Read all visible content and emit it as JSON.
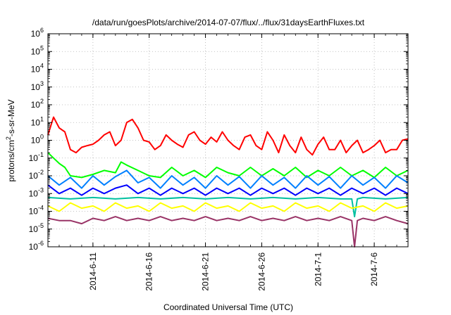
{
  "chart_data": {
    "type": "line",
    "title": "/data/run/goesPlots/archive/2014-07-07/flux/../flux/31daysEarthFluxes.txt",
    "xlabel": "Coordinated Universal Time (UTC)",
    "ylabel_main": "protons/cm",
    "ylabel_sup": "2",
    "ylabel_tail": "-s-sr-MeV",
    "y_scale": "log",
    "ylim_exp": [
      -6,
      6
    ],
    "y_ticks": [
      {
        "base": "10",
        "exp": "-6"
      },
      {
        "base": "10",
        "exp": "-5"
      },
      {
        "base": "10",
        "exp": "-4"
      },
      {
        "base": "10",
        "exp": "-3"
      },
      {
        "base": "10",
        "exp": "-2"
      },
      {
        "base": "10",
        "exp": "-1"
      },
      {
        "base": "10",
        "exp": "0"
      },
      {
        "base": "10",
        "exp": "1"
      },
      {
        "base": "10",
        "exp": "2"
      },
      {
        "base": "10",
        "exp": "3"
      },
      {
        "base": "10",
        "exp": "4"
      },
      {
        "base": "10",
        "exp": "5"
      },
      {
        "base": "10",
        "exp": "6"
      }
    ],
    "x_start": "2014-06-07",
    "x_end": "2014-07-09",
    "x_ticks": [
      "2014-6-11",
      "2014-6-16",
      "2014-6-21",
      "2014-6-26",
      "2014-7-1",
      "2014-7-6"
    ],
    "grid": true,
    "series": [
      {
        "color": "#ff0000",
        "points": [
          [
            "2014-06-07",
            2.0
          ],
          [
            "2014-06-07T12:00",
            20.0
          ],
          [
            "2014-06-08",
            5.0
          ],
          [
            "2014-06-08T12:00",
            3.0
          ],
          [
            "2014-06-09",
            0.3
          ],
          [
            "2014-06-09T12:00",
            0.2
          ],
          [
            "2014-06-10",
            0.4
          ],
          [
            "2014-06-10T12:00",
            0.5
          ],
          [
            "2014-06-11",
            0.6
          ],
          [
            "2014-06-11T12:00",
            1.0
          ],
          [
            "2014-06-12",
            2.0
          ],
          [
            "2014-06-12T12:00",
            3.0
          ],
          [
            "2014-06-13",
            0.5
          ],
          [
            "2014-06-13T12:00",
            1.0
          ],
          [
            "2014-06-14",
            10.0
          ],
          [
            "2014-06-14T12:00",
            15.0
          ],
          [
            "2014-06-15",
            5.0
          ],
          [
            "2014-06-15T12:00",
            1.0
          ],
          [
            "2014-06-16",
            0.8
          ],
          [
            "2014-06-16T12:00",
            0.3
          ],
          [
            "2014-06-17",
            0.5
          ],
          [
            "2014-06-17T12:00",
            2.0
          ],
          [
            "2014-06-18",
            1.0
          ],
          [
            "2014-06-18T12:00",
            0.6
          ],
          [
            "2014-06-19",
            0.4
          ],
          [
            "2014-06-19T12:00",
            2.0
          ],
          [
            "2014-06-20",
            3.0
          ],
          [
            "2014-06-20T12:00",
            1.0
          ],
          [
            "2014-06-21",
            0.6
          ],
          [
            "2014-06-21T12:00",
            1.5
          ],
          [
            "2014-06-22",
            0.8
          ],
          [
            "2014-06-22T12:00",
            3.0
          ],
          [
            "2014-06-23",
            1.0
          ],
          [
            "2014-06-23T12:00",
            0.5
          ],
          [
            "2014-06-24",
            0.3
          ],
          [
            "2014-06-24T12:00",
            1.5
          ],
          [
            "2014-06-25",
            2.0
          ],
          [
            "2014-06-25T12:00",
            0.5
          ],
          [
            "2014-06-26",
            0.3
          ],
          [
            "2014-06-26T12:00",
            3.0
          ],
          [
            "2014-06-27",
            1.0
          ],
          [
            "2014-06-27T12:00",
            0.2
          ],
          [
            "2014-06-28",
            2.0
          ],
          [
            "2014-06-28T12:00",
            0.5
          ],
          [
            "2014-06-29",
            0.2
          ],
          [
            "2014-06-29T12:00",
            1.5
          ],
          [
            "2014-06-30",
            0.3
          ],
          [
            "2014-06-30T12:00",
            0.15
          ],
          [
            "2014-07-01",
            0.6
          ],
          [
            "2014-07-01T12:00",
            1.5
          ],
          [
            "2014-07-02",
            0.3
          ],
          [
            "2014-07-02T12:00",
            0.3
          ],
          [
            "2014-07-03",
            1.0
          ],
          [
            "2014-07-03T12:00",
            0.2
          ],
          [
            "2014-07-04",
            0.5
          ],
          [
            "2014-07-04T12:00",
            1.0
          ],
          [
            "2014-07-05",
            0.2
          ],
          [
            "2014-07-05T12:00",
            0.3
          ],
          [
            "2014-07-06",
            0.5
          ],
          [
            "2014-07-06T12:00",
            1.0
          ],
          [
            "2014-07-07",
            0.2
          ],
          [
            "2014-07-07T12:00",
            0.3
          ],
          [
            "2014-07-08",
            0.3
          ],
          [
            "2014-07-08T12:00",
            1.0
          ],
          [
            "2014-07-09",
            1.2
          ]
        ]
      },
      {
        "color": "#00ff00",
        "points": [
          [
            "2014-06-07",
            0.2
          ],
          [
            "2014-06-07T12:00",
            0.1
          ],
          [
            "2014-06-08",
            0.05
          ],
          [
            "2014-06-08T12:00",
            0.03
          ],
          [
            "2014-06-09",
            0.01
          ],
          [
            "2014-06-10",
            0.008
          ],
          [
            "2014-06-11",
            0.012
          ],
          [
            "2014-06-12",
            0.02
          ],
          [
            "2014-06-13",
            0.015
          ],
          [
            "2014-06-13T12:00",
            0.06
          ],
          [
            "2014-06-14",
            0.04
          ],
          [
            "2014-06-15",
            0.02
          ],
          [
            "2014-06-16",
            0.01
          ],
          [
            "2014-06-17",
            0.008
          ],
          [
            "2014-06-18",
            0.03
          ],
          [
            "2014-06-19",
            0.01
          ],
          [
            "2014-06-20",
            0.02
          ],
          [
            "2014-06-21",
            0.008
          ],
          [
            "2014-06-22",
            0.03
          ],
          [
            "2014-06-23",
            0.015
          ],
          [
            "2014-06-24",
            0.01
          ],
          [
            "2014-06-25",
            0.03
          ],
          [
            "2014-06-26",
            0.01
          ],
          [
            "2014-06-27",
            0.025
          ],
          [
            "2014-06-28",
            0.01
          ],
          [
            "2014-06-29",
            0.03
          ],
          [
            "2014-06-30",
            0.008
          ],
          [
            "2014-07-01",
            0.02
          ],
          [
            "2014-07-02",
            0.01
          ],
          [
            "2014-07-03",
            0.03
          ],
          [
            "2014-07-04",
            0.01
          ],
          [
            "2014-07-05",
            0.02
          ],
          [
            "2014-07-06",
            0.008
          ],
          [
            "2014-07-07",
            0.03
          ],
          [
            "2014-07-08",
            0.01
          ],
          [
            "2014-07-09",
            0.02
          ]
        ]
      },
      {
        "color": "#0080ff",
        "points": [
          [
            "2014-06-07",
            0.01
          ],
          [
            "2014-06-08",
            0.003
          ],
          [
            "2014-06-09",
            0.008
          ],
          [
            "2014-06-10",
            0.002
          ],
          [
            "2014-06-11",
            0.01
          ],
          [
            "2014-06-12",
            0.003
          ],
          [
            "2014-06-13",
            0.009
          ],
          [
            "2014-06-14",
            0.02
          ],
          [
            "2014-06-15",
            0.004
          ],
          [
            "2014-06-16",
            0.008
          ],
          [
            "2014-06-17",
            0.002
          ],
          [
            "2014-06-18",
            0.01
          ],
          [
            "2014-06-19",
            0.003
          ],
          [
            "2014-06-20",
            0.008
          ],
          [
            "2014-06-21",
            0.002
          ],
          [
            "2014-06-22",
            0.01
          ],
          [
            "2014-06-23",
            0.003
          ],
          [
            "2014-06-24",
            0.009
          ],
          [
            "2014-06-25",
            0.002
          ],
          [
            "2014-06-26",
            0.01
          ],
          [
            "2014-06-27",
            0.003
          ],
          [
            "2014-06-28",
            0.008
          ],
          [
            "2014-06-29",
            0.002
          ],
          [
            "2014-06-30",
            0.01
          ],
          [
            "2014-07-01",
            0.003
          ],
          [
            "2014-07-02",
            0.009
          ],
          [
            "2014-07-03",
            0.002
          ],
          [
            "2014-07-04",
            0.01
          ],
          [
            "2014-07-05",
            0.003
          ],
          [
            "2014-07-06",
            0.008
          ],
          [
            "2014-07-07",
            0.002
          ],
          [
            "2014-07-08",
            0.01
          ],
          [
            "2014-07-09",
            0.004
          ]
        ]
      },
      {
        "color": "#0000ff",
        "points": [
          [
            "2014-06-07",
            0.003
          ],
          [
            "2014-06-08",
            0.001
          ],
          [
            "2014-06-09",
            0.002
          ],
          [
            "2014-06-10",
            0.0008
          ],
          [
            "2014-06-11",
            0.002
          ],
          [
            "2014-06-12",
            0.001
          ],
          [
            "2014-06-13",
            0.002
          ],
          [
            "2014-06-14",
            0.003
          ],
          [
            "2014-06-15",
            0.001
          ],
          [
            "2014-06-16",
            0.002
          ],
          [
            "2014-06-17",
            0.0008
          ],
          [
            "2014-06-18",
            0.002
          ],
          [
            "2014-06-19",
            0.001
          ],
          [
            "2014-06-20",
            0.002
          ],
          [
            "2014-06-21",
            0.0008
          ],
          [
            "2014-06-22",
            0.002
          ],
          [
            "2014-06-23",
            0.001
          ],
          [
            "2014-06-24",
            0.002
          ],
          [
            "2014-06-25",
            0.0008
          ],
          [
            "2014-06-26",
            0.002
          ],
          [
            "2014-06-27",
            0.001
          ],
          [
            "2014-06-28",
            0.002
          ],
          [
            "2014-06-29",
            0.0008
          ],
          [
            "2014-06-30",
            0.002
          ],
          [
            "2014-07-01",
            0.001
          ],
          [
            "2014-07-02",
            0.002
          ],
          [
            "2014-07-03",
            0.0008
          ],
          [
            "2014-07-04",
            0.002
          ],
          [
            "2014-07-05",
            0.001
          ],
          [
            "2014-07-06",
            0.002
          ],
          [
            "2014-07-07",
            0.0008
          ],
          [
            "2014-07-08",
            0.002
          ],
          [
            "2014-07-09",
            0.001
          ]
        ]
      },
      {
        "color": "#00c0a0",
        "points": [
          [
            "2014-06-07",
            0.0006
          ],
          [
            "2014-06-09",
            0.0005
          ],
          [
            "2014-06-11",
            0.0006
          ],
          [
            "2014-06-13",
            0.0005
          ],
          [
            "2014-06-15",
            0.0006
          ],
          [
            "2014-06-17",
            0.0005
          ],
          [
            "2014-06-19",
            0.0006
          ],
          [
            "2014-06-21",
            0.0005
          ],
          [
            "2014-06-23",
            0.0006
          ],
          [
            "2014-06-25",
            0.0005
          ],
          [
            "2014-06-27",
            0.0006
          ],
          [
            "2014-06-29",
            0.0005
          ],
          [
            "2014-07-01",
            0.0006
          ],
          [
            "2014-07-03",
            0.0005
          ],
          [
            "2014-07-04",
            0.0005
          ],
          [
            "2014-07-04T06:00",
            5e-05
          ],
          [
            "2014-07-04T12:00",
            0.0005
          ],
          [
            "2014-07-05",
            0.0006
          ],
          [
            "2014-07-07",
            0.0005
          ],
          [
            "2014-07-09",
            0.0006
          ]
        ]
      },
      {
        "color": "#ffff00",
        "points": [
          [
            "2014-06-07",
            0.0002
          ],
          [
            "2014-06-08",
            0.0001
          ],
          [
            "2014-06-09",
            0.0003
          ],
          [
            "2014-06-10",
            0.00015
          ],
          [
            "2014-06-11",
            0.0002
          ],
          [
            "2014-06-12",
            0.0001
          ],
          [
            "2014-06-13",
            0.0003
          ],
          [
            "2014-06-14",
            0.00015
          ],
          [
            "2014-06-15",
            0.0002
          ],
          [
            "2014-06-16",
            0.0001
          ],
          [
            "2014-06-17",
            0.0003
          ],
          [
            "2014-06-18",
            0.00015
          ],
          [
            "2014-06-19",
            0.0002
          ],
          [
            "2014-06-20",
            0.0001
          ],
          [
            "2014-06-21",
            0.0003
          ],
          [
            "2014-06-22",
            0.00015
          ],
          [
            "2014-06-23",
            0.0002
          ],
          [
            "2014-06-24",
            0.0001
          ],
          [
            "2014-06-25",
            0.0003
          ],
          [
            "2014-06-26",
            0.00015
          ],
          [
            "2014-06-27",
            0.0002
          ],
          [
            "2014-06-28",
            0.0001
          ],
          [
            "2014-06-29",
            0.0003
          ],
          [
            "2014-06-30",
            0.00015
          ],
          [
            "2014-07-01",
            0.0002
          ],
          [
            "2014-07-02",
            0.0001
          ],
          [
            "2014-07-03",
            0.0003
          ],
          [
            "2014-07-04",
            0.00015
          ],
          [
            "2014-07-05",
            0.0002
          ],
          [
            "2014-07-06",
            0.0001
          ],
          [
            "2014-07-07",
            0.0003
          ],
          [
            "2014-07-08",
            0.00015
          ],
          [
            "2014-07-09",
            0.0002
          ]
        ]
      },
      {
        "color": "#993366",
        "points": [
          [
            "2014-06-07",
            4e-05
          ],
          [
            "2014-06-08",
            3e-05
          ],
          [
            "2014-06-09",
            3e-05
          ],
          [
            "2014-06-10",
            2e-05
          ],
          [
            "2014-06-11",
            4e-05
          ],
          [
            "2014-06-12",
            3e-05
          ],
          [
            "2014-06-13",
            5e-05
          ],
          [
            "2014-06-14",
            3e-05
          ],
          [
            "2014-06-15",
            4e-05
          ],
          [
            "2014-06-16",
            3e-05
          ],
          [
            "2014-06-17",
            5e-05
          ],
          [
            "2014-06-18",
            3e-05
          ],
          [
            "2014-06-19",
            4e-05
          ],
          [
            "2014-06-20",
            3e-05
          ],
          [
            "2014-06-21",
            5e-05
          ],
          [
            "2014-06-22",
            3e-05
          ],
          [
            "2014-06-23",
            4e-05
          ],
          [
            "2014-06-24",
            3e-05
          ],
          [
            "2014-06-25",
            5e-05
          ],
          [
            "2014-06-26",
            3e-05
          ],
          [
            "2014-06-27",
            4e-05
          ],
          [
            "2014-06-28",
            3e-05
          ],
          [
            "2014-06-29",
            5e-05
          ],
          [
            "2014-06-30",
            3e-05
          ],
          [
            "2014-07-01",
            4e-05
          ],
          [
            "2014-07-02",
            3e-05
          ],
          [
            "2014-07-03",
            5e-05
          ],
          [
            "2014-07-04",
            3e-05
          ],
          [
            "2014-07-04T06:00",
            1e-06
          ],
          [
            "2014-07-04T12:00",
            3e-05
          ],
          [
            "2014-07-05",
            4e-05
          ],
          [
            "2014-07-06",
            3e-05
          ],
          [
            "2014-07-07",
            5e-05
          ],
          [
            "2014-07-08",
            3e-05
          ],
          [
            "2014-07-09",
            2e-05
          ]
        ]
      }
    ]
  }
}
